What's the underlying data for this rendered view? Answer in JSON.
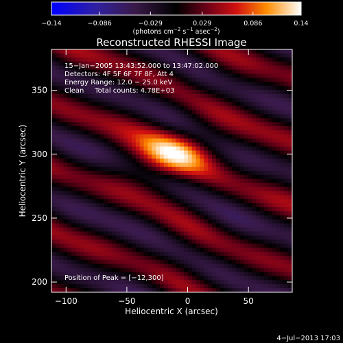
{
  "chart_data": {
    "type": "heatmap",
    "title": "Reconstructed RHESSI Image",
    "xlabel": "Heliocentric X (arcsec)",
    "ylabel": "Heliocentric Y (arcsec)",
    "xlim": [
      -112,
      86
    ],
    "ylim": [
      192,
      382
    ],
    "x_ticks": [
      {
        "value": -100,
        "label": "−100"
      },
      {
        "value": -50,
        "label": "−50"
      },
      {
        "value": 0,
        "label": "0"
      },
      {
        "value": 50,
        "label": "50"
      }
    ],
    "y_ticks": [
      {
        "value": 200,
        "label": "200"
      },
      {
        "value": 250,
        "label": "250"
      },
      {
        "value": 300,
        "label": "300"
      },
      {
        "value": 350,
        "label": "350"
      }
    ],
    "colorbar": {
      "range": [
        -0.14,
        0.14
      ],
      "ticks": [
        {
          "value": -0.14,
          "label": "−0.14"
        },
        {
          "value": -0.086,
          "label": "−0.086"
        },
        {
          "value": -0.029,
          "label": "−0.029"
        },
        {
          "value": 0.029,
          "label": "0.029"
        },
        {
          "value": 0.086,
          "label": "0.086"
        },
        {
          "value": 0.14,
          "label": "0.14"
        }
      ],
      "unit_main": "(photons cm",
      "unit_sup1": "−2",
      "unit_mid1": " s",
      "unit_sup2": "−1",
      "unit_mid2": " asec",
      "unit_sup3": "−2",
      "unit_end": ")"
    },
    "peak": {
      "x": -12,
      "y": 300,
      "value": 0.14
    },
    "info_lines": [
      "15−Jan−2005 13:43:52.000 to 13:47:02.000",
      "Detectors: 4F 5F 6F 7F 8F, Att 4",
      "Energy Range: 12.0 − 25.0 keV",
      "Clean     Total counts: 4.78E+03"
    ],
    "peak_label": "Position of Peak = [−12,300]",
    "timestamp": "4−Jul−2013 17:03"
  }
}
